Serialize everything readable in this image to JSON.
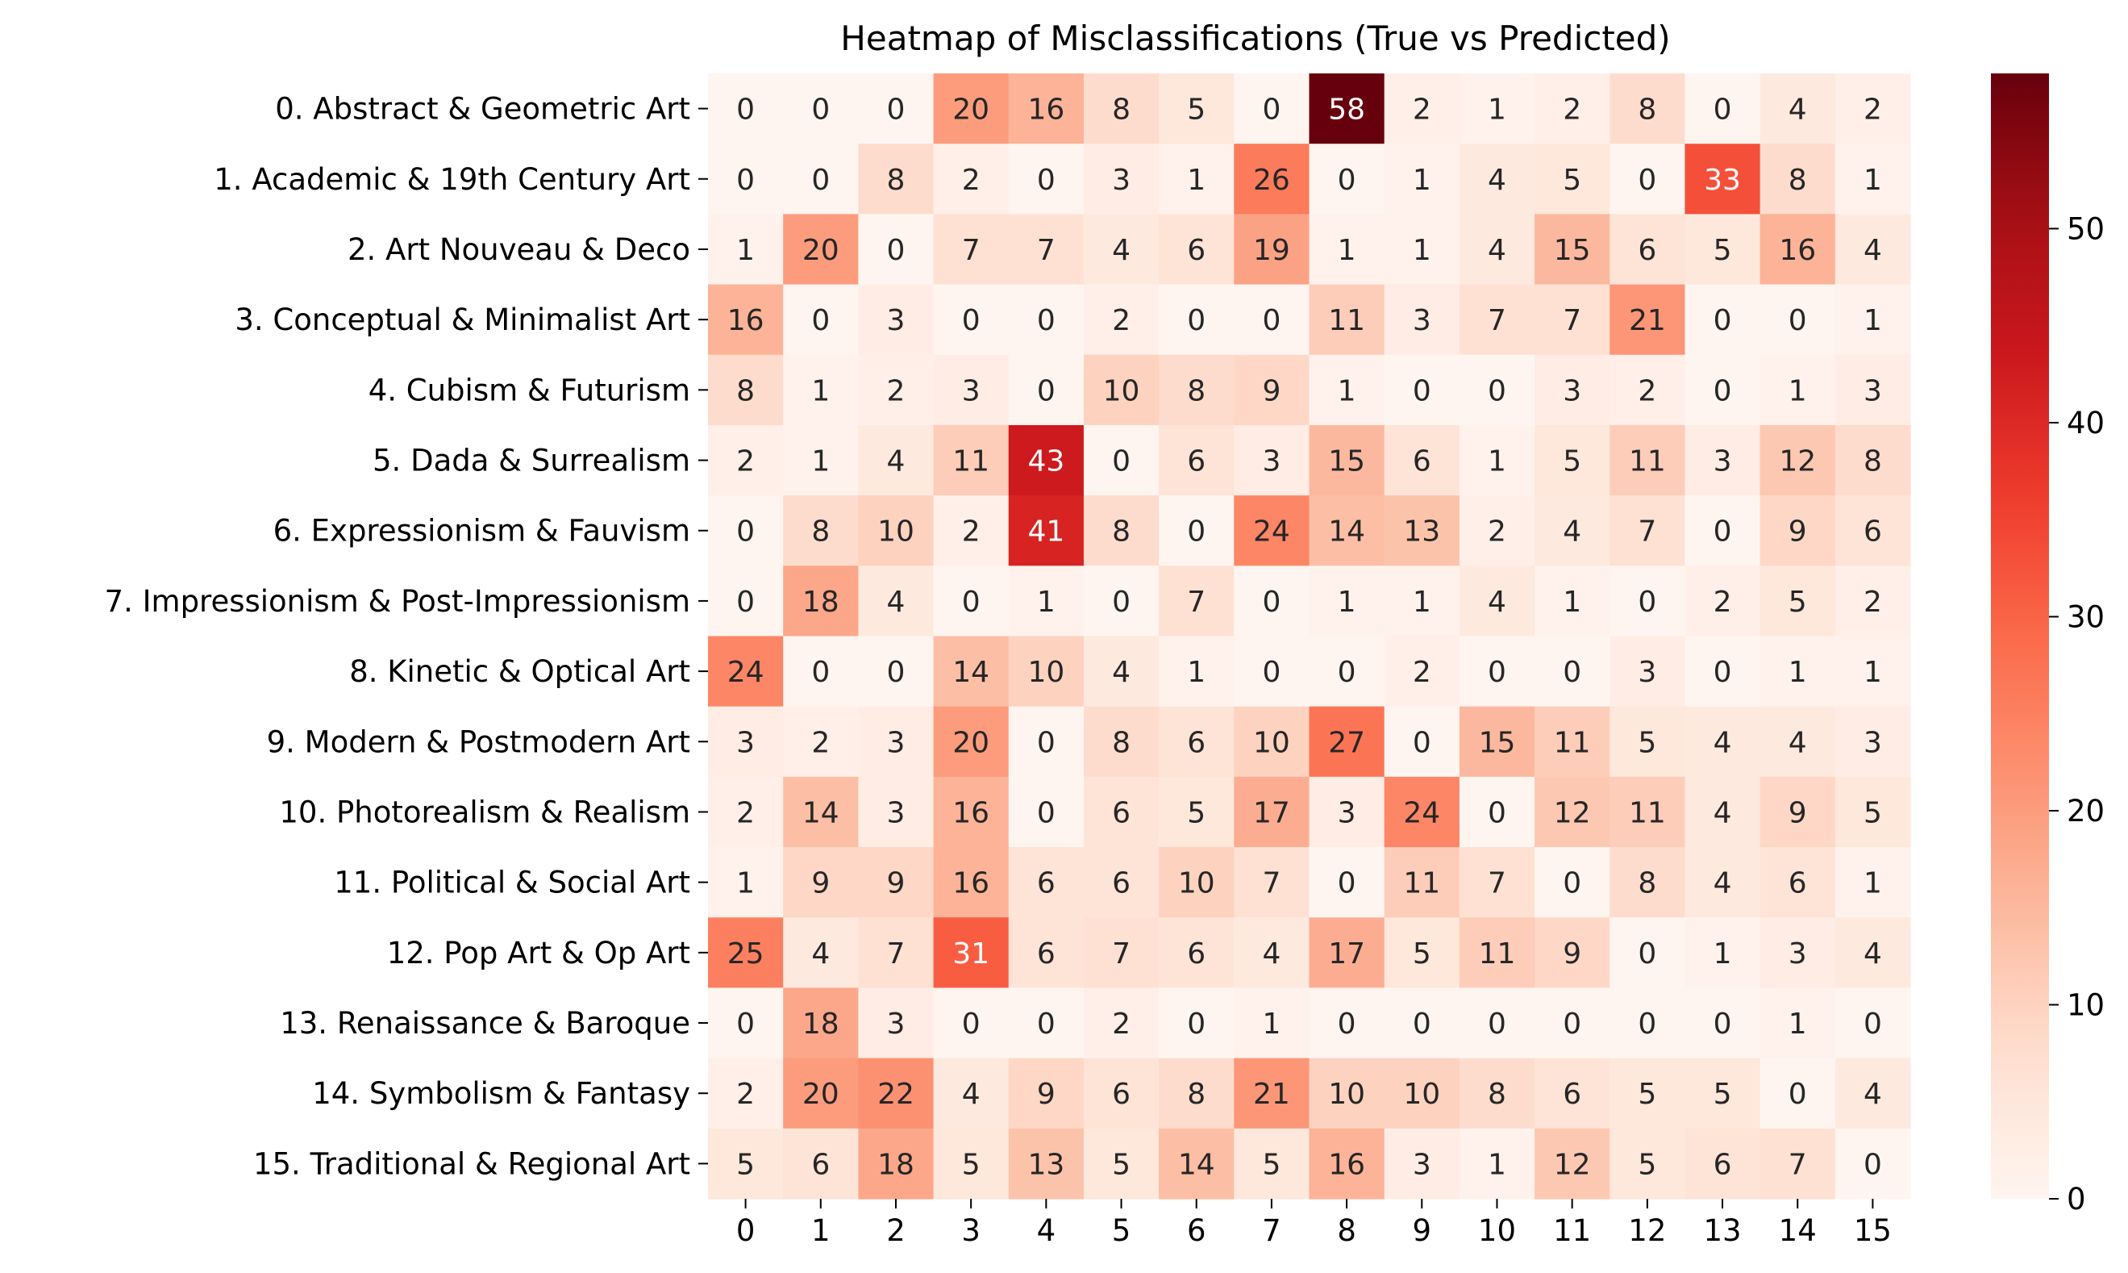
{
  "chart_data": {
    "type": "heatmap",
    "title": "Heatmap of Misclassifications (True vs Predicted)",
    "xlabel": "",
    "ylabel": "",
    "row_labels": [
      "0. Abstract & Geometric Art",
      "1. Academic & 19th Century Art",
      "2. Art Nouveau & Deco",
      "3. Conceptual & Minimalist Art",
      "4. Cubism & Futurism",
      "5. Dada & Surrealism",
      "6. Expressionism & Fauvism",
      "7. Impressionism & Post-Impressionism",
      "8. Kinetic & Optical Art",
      "9. Modern & Postmodern Art",
      "10. Photorealism & Realism",
      "11. Political & Social Art",
      "12. Pop Art & Op Art",
      "13. Renaissance & Baroque",
      "14. Symbolism & Fantasy",
      "15. Traditional & Regional Art"
    ],
    "col_labels": [
      "0",
      "1",
      "2",
      "3",
      "4",
      "5",
      "6",
      "7",
      "8",
      "9",
      "10",
      "11",
      "12",
      "13",
      "14",
      "15"
    ],
    "values": [
      [
        0,
        0,
        0,
        20,
        16,
        8,
        5,
        0,
        58,
        2,
        1,
        2,
        8,
        0,
        4,
        2
      ],
      [
        0,
        0,
        8,
        2,
        0,
        3,
        1,
        26,
        0,
        1,
        4,
        5,
        0,
        33,
        8,
        1
      ],
      [
        1,
        20,
        0,
        7,
        7,
        4,
        6,
        19,
        1,
        1,
        4,
        15,
        6,
        5,
        16,
        4
      ],
      [
        16,
        0,
        3,
        0,
        0,
        2,
        0,
        0,
        11,
        3,
        7,
        7,
        21,
        0,
        0,
        1
      ],
      [
        8,
        1,
        2,
        3,
        0,
        10,
        8,
        9,
        1,
        0,
        0,
        3,
        2,
        0,
        1,
        3
      ],
      [
        2,
        1,
        4,
        11,
        43,
        0,
        6,
        3,
        15,
        6,
        1,
        5,
        11,
        3,
        12,
        8
      ],
      [
        0,
        8,
        10,
        2,
        41,
        8,
        0,
        24,
        14,
        13,
        2,
        4,
        7,
        0,
        9,
        6
      ],
      [
        0,
        18,
        4,
        0,
        1,
        0,
        7,
        0,
        1,
        1,
        4,
        1,
        0,
        2,
        5,
        2
      ],
      [
        24,
        0,
        0,
        14,
        10,
        4,
        1,
        0,
        0,
        2,
        0,
        0,
        3,
        0,
        1,
        1
      ],
      [
        3,
        2,
        3,
        20,
        0,
        8,
        6,
        10,
        27,
        0,
        15,
        11,
        5,
        4,
        4,
        3
      ],
      [
        2,
        14,
        3,
        16,
        0,
        6,
        5,
        17,
        3,
        24,
        0,
        12,
        11,
        4,
        9,
        5
      ],
      [
        1,
        9,
        9,
        16,
        6,
        6,
        10,
        7,
        0,
        11,
        7,
        0,
        8,
        4,
        6,
        1
      ],
      [
        25,
        4,
        7,
        31,
        6,
        7,
        6,
        4,
        17,
        5,
        11,
        9,
        0,
        1,
        3,
        4
      ],
      [
        0,
        18,
        3,
        0,
        0,
        2,
        0,
        1,
        0,
        0,
        0,
        0,
        0,
        0,
        1,
        0
      ],
      [
        2,
        20,
        22,
        4,
        9,
        6,
        8,
        21,
        10,
        10,
        8,
        6,
        5,
        5,
        0,
        4
      ],
      [
        5,
        6,
        18,
        5,
        13,
        5,
        14,
        5,
        16,
        3,
        1,
        12,
        5,
        6,
        7,
        0
      ]
    ],
    "colormap": "Reds",
    "vmin": 0,
    "vmax": 58,
    "colorbar_ticks": [
      0,
      10,
      20,
      30,
      40,
      50
    ],
    "annotations": true
  }
}
